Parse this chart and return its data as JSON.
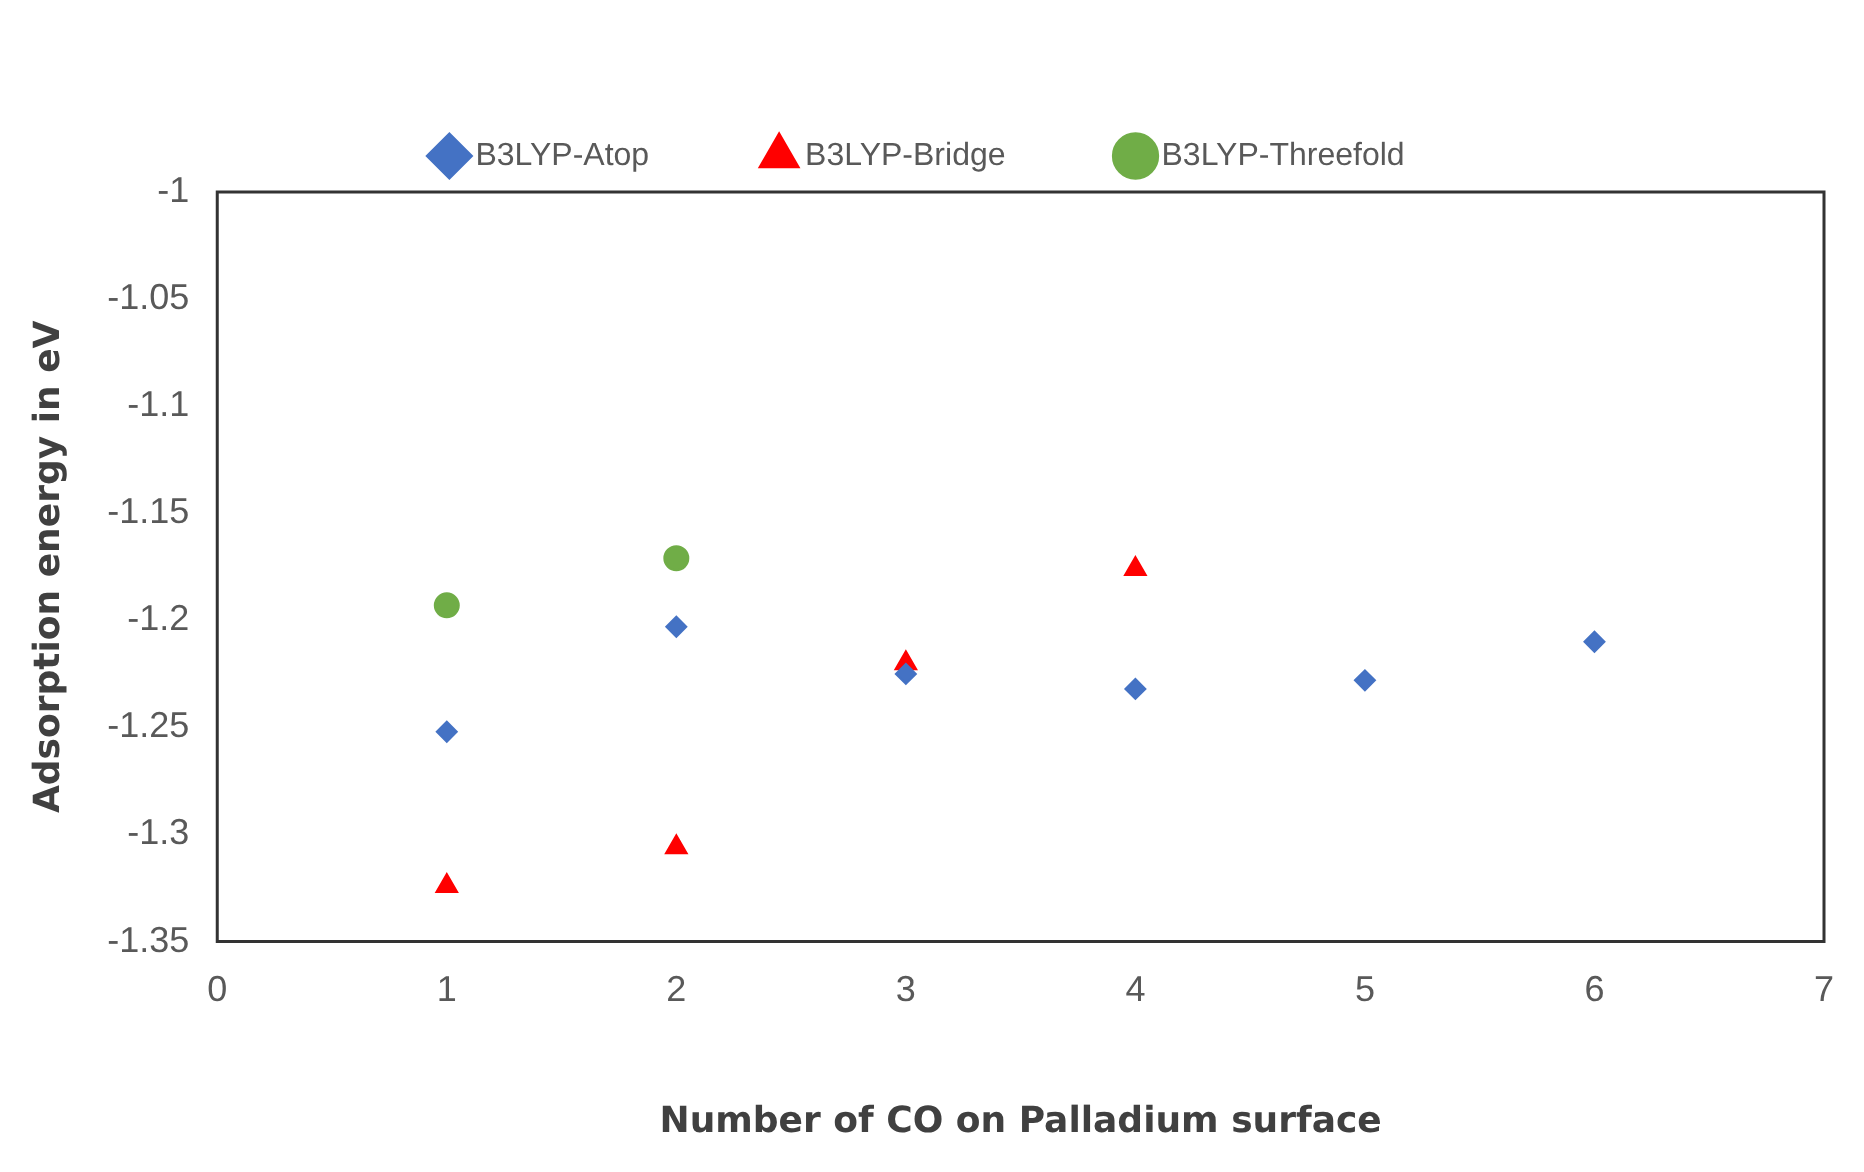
{
  "chart_data": {
    "type": "scatter",
    "xlabel": "Number of CO on Palladium surface",
    "ylabel": "Adsorption energy in eV",
    "xlim": [
      0,
      7
    ],
    "xticks": [
      0,
      1,
      2,
      3,
      4,
      5,
      6,
      7
    ],
    "ylim": [
      -1.35,
      -1
    ],
    "yticks": [
      -1.35,
      -1.3,
      -1.25,
      -1.2,
      -1.15,
      -1.1,
      -1.05,
      -1
    ],
    "grid": false,
    "legend": "top",
    "series": [
      {
        "name": "B3LYP-Atop",
        "color": "#4472c4",
        "marker": "diamond",
        "x": [
          1,
          2,
          3,
          4,
          5,
          6
        ],
        "values": [
          -1.252,
          -1.203,
          -1.225,
          -1.232,
          -1.228,
          -1.21
        ]
      },
      {
        "name": "B3LYP-Bridge",
        "color": "#ff0000",
        "marker": "triangle",
        "x": [
          1,
          2,
          3,
          4
        ],
        "values": [
          -1.324,
          -1.306,
          -1.22,
          -1.176
        ]
      },
      {
        "name": "B3LYP-Threefold",
        "color": "#70ad47",
        "marker": "circle",
        "x": [
          1,
          2
        ],
        "values": [
          -1.193,
          -1.171
        ]
      }
    ]
  }
}
